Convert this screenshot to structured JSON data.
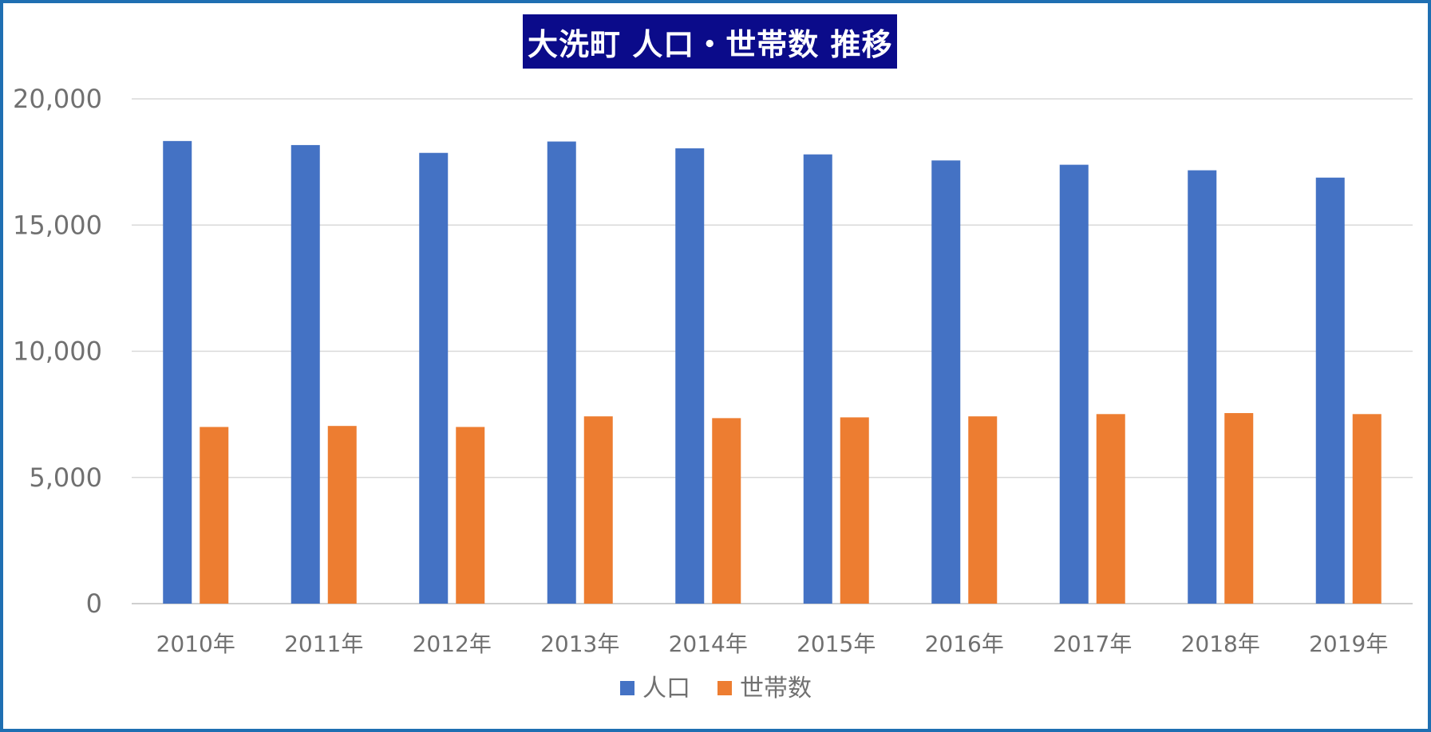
{
  "chart_data": {
    "type": "bar",
    "title": "大洗町 人口・世帯数 推移",
    "categories": [
      "2010年",
      "2011年",
      "2012年",
      "2013年",
      "2014年",
      "2015年",
      "2016年",
      "2017年",
      "2018年",
      "2019年"
    ],
    "series": [
      {
        "name": "人口",
        "color": "#4472c4",
        "values": [
          18330,
          18170,
          17860,
          18310,
          18040,
          17800,
          17560,
          17390,
          17170,
          16880
        ]
      },
      {
        "name": "世帯数",
        "color": "#ed7d31",
        "values": [
          7000,
          7040,
          7000,
          7420,
          7350,
          7380,
          7420,
          7510,
          7550,
          7510
        ]
      }
    ],
    "y_ticks": [
      "0",
      "5,000",
      "10,000",
      "15,000",
      "20,000"
    ],
    "ylim": [
      0,
      20000
    ],
    "xlabel": "",
    "ylabel": "",
    "grid": true,
    "legend_position": "bottom"
  }
}
